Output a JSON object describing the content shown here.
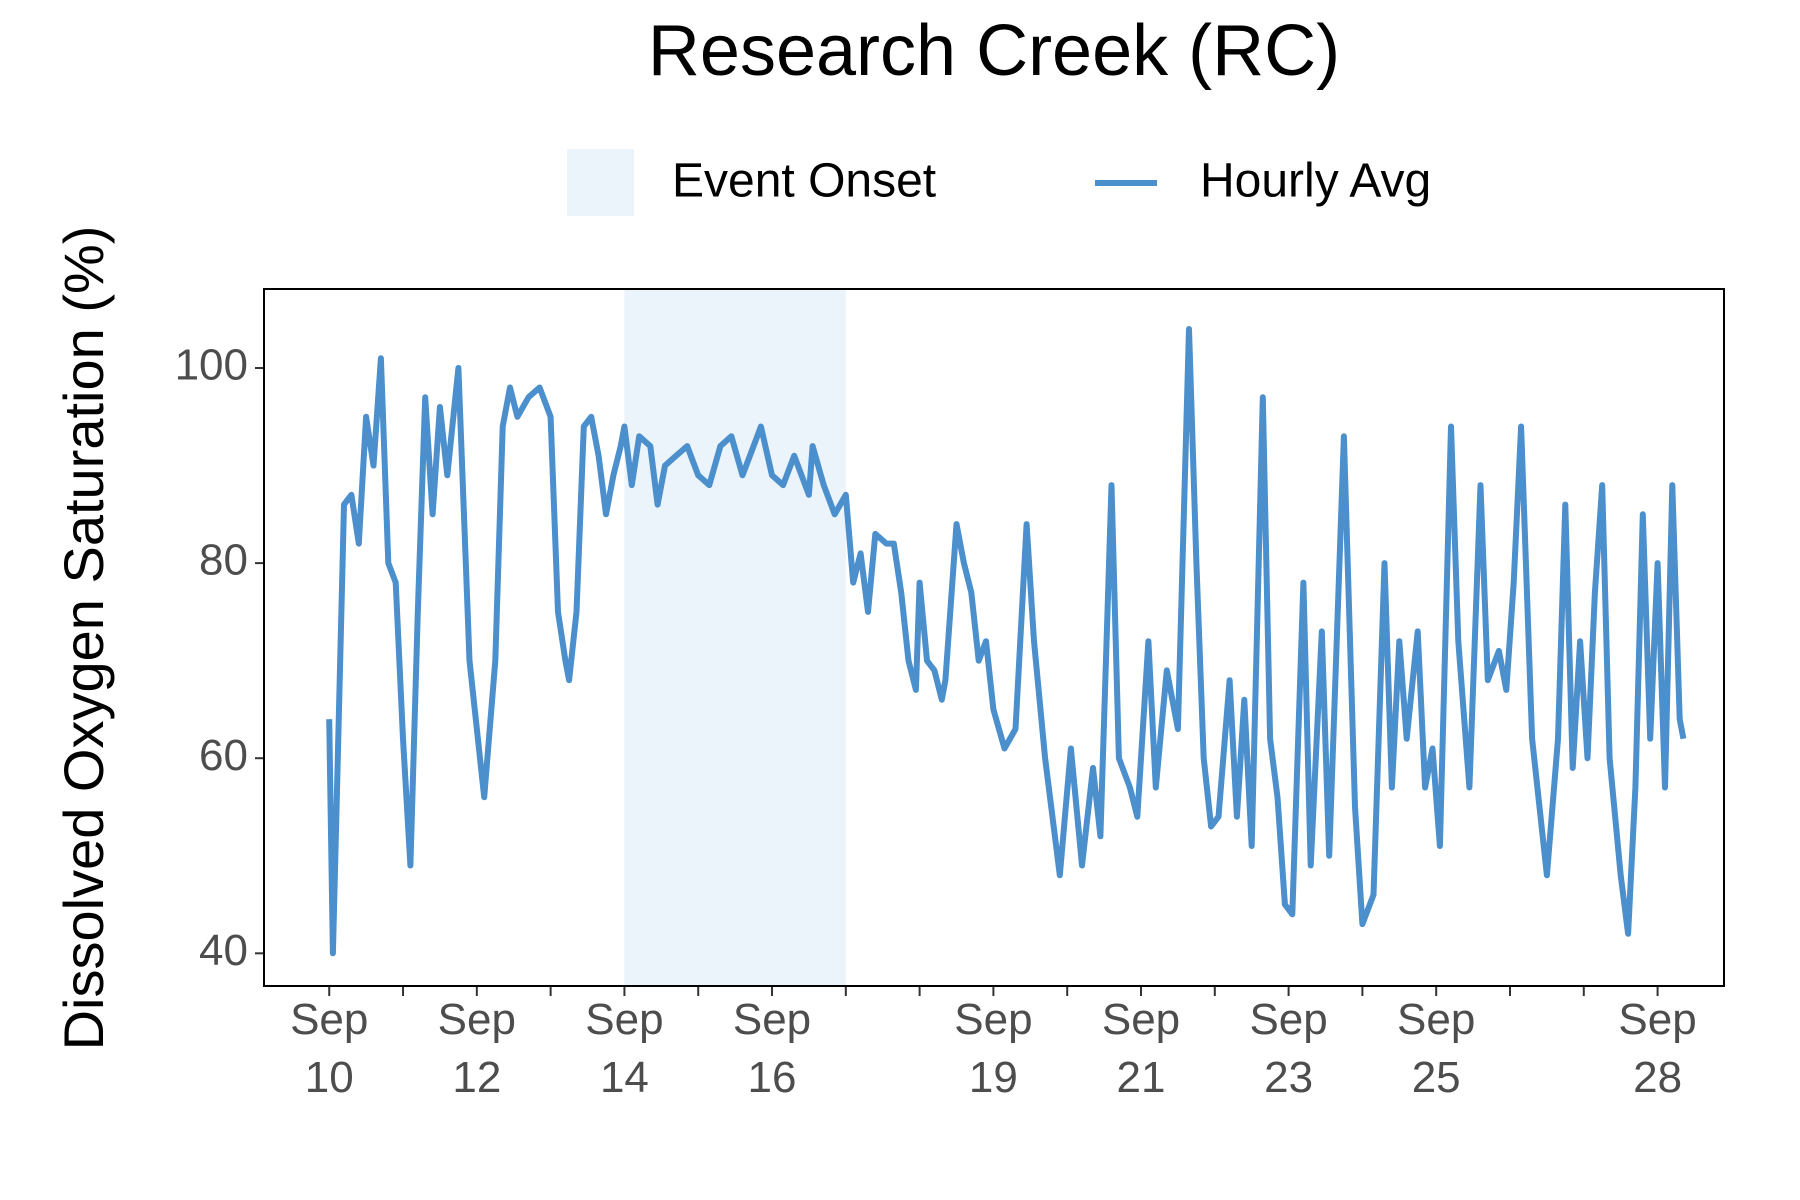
{
  "chart_data": {
    "type": "line",
    "title": "Research Creek (RC)",
    "y_label": "Dissolved Oxygen Saturation (%)",
    "x": [
      10.0,
      10.05,
      10.1,
      10.2,
      10.3,
      10.4,
      10.5,
      10.6,
      10.7,
      10.8,
      10.9,
      11.0,
      11.1,
      11.2,
      11.3,
      11.4,
      11.5,
      11.6,
      11.75,
      11.9,
      12.1,
      12.25,
      12.35,
      12.45,
      12.55,
      12.7,
      12.85,
      13.0,
      13.1,
      13.2,
      13.25,
      13.35,
      13.45,
      13.55,
      13.65,
      13.75,
      13.85,
      13.95,
      14.0,
      14.1,
      14.2,
      14.35,
      14.45,
      14.55,
      14.7,
      14.85,
      15.0,
      15.15,
      15.3,
      15.45,
      15.6,
      15.75,
      15.85,
      16.0,
      16.15,
      16.3,
      16.5,
      16.55,
      16.7,
      16.85,
      17.0,
      17.1,
      17.2,
      17.3,
      17.4,
      17.55,
      17.65,
      17.75,
      17.85,
      17.95,
      18.0,
      18.1,
      18.2,
      18.3,
      18.35,
      18.5,
      18.6,
      18.7,
      18.8,
      18.9,
      19.0,
      19.15,
      19.3,
      19.45,
      19.55,
      19.7,
      19.9,
      20.05,
      20.2,
      20.35,
      20.45,
      20.6,
      20.7,
      20.85,
      20.95,
      21.1,
      21.2,
      21.35,
      21.5,
      21.65,
      21.75,
      21.85,
      21.95,
      22.05,
      22.2,
      22.3,
      22.4,
      22.5,
      22.65,
      22.75,
      22.85,
      22.95,
      23.05,
      23.2,
      23.3,
      23.45,
      23.55,
      23.75,
      23.9,
      24.0,
      24.15,
      24.3,
      24.4,
      24.5,
      24.6,
      24.75,
      24.85,
      24.95,
      25.05,
      25.2,
      25.3,
      25.45,
      25.6,
      25.7,
      25.85,
      25.95,
      26.05,
      26.15,
      26.3,
      26.5,
      26.65,
      26.75,
      26.85,
      26.95,
      27.05,
      27.15,
      27.25,
      27.35,
      27.5,
      27.6,
      27.7,
      27.8,
      27.9,
      28.0,
      28.1,
      28.2,
      28.3,
      28.35
    ],
    "series": [
      {
        "name": "Hourly Avg",
        "color": "#4b8fcd",
        "values": [
          64,
          40,
          55,
          86,
          87,
          82,
          95,
          90,
          101,
          80,
          78,
          62,
          49,
          75,
          97,
          85,
          96,
          89,
          100,
          70,
          56,
          70,
          94,
          98,
          95,
          97,
          98,
          95,
          75,
          70,
          68,
          75,
          94,
          95,
          91,
          85,
          89,
          92,
          94,
          88,
          93,
          92,
          86,
          90,
          91,
          92,
          89,
          88,
          92,
          93,
          89,
          92,
          94,
          89,
          88,
          91,
          87,
          92,
          88,
          85,
          87,
          78,
          81,
          75,
          83,
          82,
          82,
          77,
          70,
          67,
          78,
          70,
          69,
          66,
          68,
          84,
          80,
          77,
          70,
          72,
          65,
          61,
          63,
          84,
          72,
          60,
          48,
          61,
          49,
          59,
          52,
          88,
          60,
          57,
          54,
          72,
          57,
          69,
          63,
          104,
          80,
          60,
          53,
          54,
          68,
          54,
          66,
          51,
          97,
          62,
          56,
          45,
          44,
          78,
          49,
          73,
          50,
          93,
          55,
          43,
          46,
          80,
          57,
          72,
          62,
          73,
          57,
          61,
          51,
          94,
          72,
          57,
          88,
          68,
          71,
          67,
          78,
          94,
          62,
          48,
          62,
          86,
          59,
          72,
          60,
          77,
          88,
          60,
          48,
          42,
          57,
          85,
          62,
          80,
          57,
          88,
          64,
          62
        ]
      }
    ],
    "spans": [
      {
        "name": "Event Onset",
        "color": "#ebf3fb",
        "range": [
          14,
          17
        ]
      }
    ],
    "xlim": [
      9.116,
      28.9
    ],
    "ylim": [
      36.65,
      108.1
    ],
    "xticks": [
      {
        "value": 10,
        "label": "Sep 10"
      },
      {
        "value": 12,
        "label": "Sep 12"
      },
      {
        "value": 14,
        "label": "Sep 14"
      },
      {
        "value": 16,
        "label": "Sep 16"
      },
      {
        "value": 19,
        "label": "Sep 19"
      },
      {
        "value": 21,
        "label": "Sep 21"
      },
      {
        "value": 23,
        "label": "Sep 23"
      },
      {
        "value": 25,
        "label": "Sep 25"
      },
      {
        "value": 28,
        "label": "Sep 28"
      }
    ],
    "xminorticks": [
      11,
      13,
      15,
      17,
      18,
      20,
      22,
      24,
      26,
      27
    ],
    "yticks": [
      40,
      60,
      80,
      100
    ]
  }
}
